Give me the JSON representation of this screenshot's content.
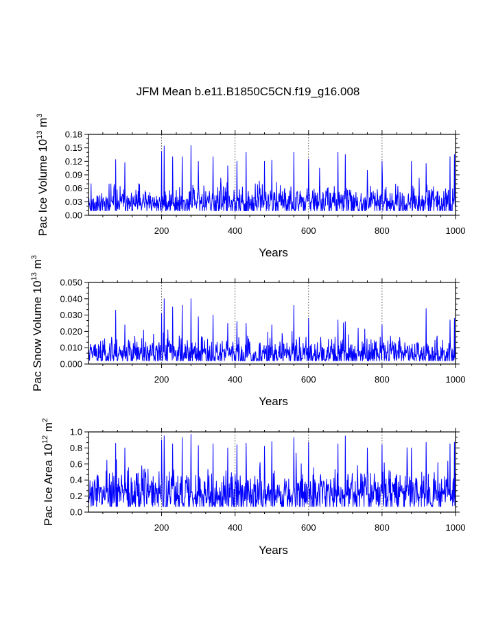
{
  "title": "JFM Mean b.e11.B1850C5CN.f19_g16.008",
  "line_color": "#0000ff",
  "chart_data": [
    {
      "type": "line",
      "ylabel_main": "Pac Ice Volume 10",
      "ylabel_exp": "13",
      "ylabel_unit": " m",
      "ylabel_unit_exp": "3",
      "xlabel": "Years",
      "xlim": [
        1,
        1000
      ],
      "ylim": [
        0,
        0.18
      ],
      "xticks": [
        200,
        400,
        600,
        800,
        1000
      ],
      "xtick_labels": [
        "200",
        "400",
        "600",
        "800",
        "1000"
      ],
      "yticks": [
        0,
        0.03,
        0.06,
        0.09,
        0.12,
        0.15,
        0.18
      ],
      "ytick_labels": [
        "0.00",
        "0.03",
        "0.06",
        "0.09",
        "0.12",
        "0.15",
        "0.18"
      ],
      "gridlines_x": [
        200,
        400,
        600,
        800
      ],
      "series": [
        {
          "name": "Pac Ice Volume",
          "mean": 0.046,
          "sd": 0.016,
          "floor": 0.01,
          "peaks": [
            [
              75,
              0.124
            ],
            [
              100,
              0.117
            ],
            [
              200,
              0.142
            ],
            [
              207,
              0.154
            ],
            [
              230,
              0.13
            ],
            [
              256,
              0.13
            ],
            [
              280,
              0.155
            ],
            [
              300,
              0.12
            ],
            [
              340,
              0.13
            ],
            [
              380,
              0.11
            ],
            [
              405,
              0.12
            ],
            [
              430,
              0.14
            ],
            [
              480,
              0.12
            ],
            [
              500,
              0.123
            ],
            [
              560,
              0.14
            ],
            [
              600,
              0.125
            ],
            [
              630,
              0.105
            ],
            [
              680,
              0.14
            ],
            [
              700,
              0.135
            ],
            [
              760,
              0.1
            ],
            [
              800,
              0.12
            ],
            [
              880,
              0.12
            ],
            [
              920,
              0.115
            ],
            [
              985,
              0.13
            ],
            [
              997,
              0.135
            ]
          ],
          "seed": 11
        }
      ]
    },
    {
      "type": "line",
      "ylabel_main": "Pac Snow Volume 10",
      "ylabel_exp": "13",
      "ylabel_unit": " m",
      "ylabel_unit_exp": "3",
      "xlabel": "Years",
      "xlim": [
        1,
        1000
      ],
      "ylim": [
        0,
        0.05
      ],
      "xticks": [
        200,
        400,
        600,
        800,
        1000
      ],
      "xtick_labels": [
        "200",
        "400",
        "600",
        "800",
        "1000"
      ],
      "yticks": [
        0,
        0.01,
        0.02,
        0.03,
        0.04,
        0.05
      ],
      "ytick_labels": [
        "0.000",
        "0.010",
        "0.020",
        "0.030",
        "0.040",
        "0.050"
      ],
      "gridlines_x": [
        200,
        400,
        600,
        800
      ],
      "series": [
        {
          "name": "Pac Snow Volume",
          "mean": 0.0105,
          "sd": 0.0045,
          "floor": 0.002,
          "peaks": [
            [
              75,
              0.033
            ],
            [
              100,
              0.024
            ],
            [
              200,
              0.031
            ],
            [
              207,
              0.04
            ],
            [
              230,
              0.035
            ],
            [
              256,
              0.036
            ],
            [
              280,
              0.04
            ],
            [
              300,
              0.029
            ],
            [
              340,
              0.03
            ],
            [
              380,
              0.025
            ],
            [
              405,
              0.026
            ],
            [
              430,
              0.025
            ],
            [
              500,
              0.024
            ],
            [
              560,
              0.036
            ],
            [
              600,
              0.028
            ],
            [
              680,
              0.027
            ],
            [
              700,
              0.026
            ],
            [
              800,
              0.024
            ],
            [
              920,
              0.034
            ],
            [
              985,
              0.027
            ],
            [
              997,
              0.028
            ]
          ],
          "seed": 23
        }
      ]
    },
    {
      "type": "line",
      "ylabel_main": "Pac Ice Area 10",
      "ylabel_exp": "12",
      "ylabel_unit": " m",
      "ylabel_unit_exp": "2",
      "xlabel": "Years",
      "xlim": [
        1,
        1000
      ],
      "ylim": [
        0,
        1.0
      ],
      "xticks": [
        200,
        400,
        600,
        800,
        1000
      ],
      "xtick_labels": [
        "200",
        "400",
        "600",
        "800",
        "1000"
      ],
      "yticks": [
        0,
        0.2,
        0.4,
        0.6,
        0.8,
        1.0
      ],
      "ytick_labels": [
        "0.0",
        "0.2",
        "0.4",
        "0.6",
        "0.8",
        "1.0"
      ],
      "gridlines_x": [
        200,
        400,
        600,
        800
      ],
      "series": [
        {
          "name": "Pac Ice Area",
          "mean": 0.4,
          "sd": 0.13,
          "floor": 0.07,
          "peaks": [
            [
              75,
              0.86
            ],
            [
              100,
              0.8
            ],
            [
              200,
              0.9
            ],
            [
              207,
              0.95
            ],
            [
              230,
              0.85
            ],
            [
              256,
              0.93
            ],
            [
              280,
              0.97
            ],
            [
              300,
              0.83
            ],
            [
              340,
              0.85
            ],
            [
              380,
              0.8
            ],
            [
              405,
              0.84
            ],
            [
              430,
              0.86
            ],
            [
              480,
              0.82
            ],
            [
              500,
              0.88
            ],
            [
              560,
              0.93
            ],
            [
              600,
              0.87
            ],
            [
              680,
              0.85
            ],
            [
              700,
              0.95
            ],
            [
              760,
              0.8
            ],
            [
              800,
              0.84
            ],
            [
              880,
              0.8
            ],
            [
              920,
              0.87
            ],
            [
              985,
              0.85
            ],
            [
              997,
              0.87
            ]
          ],
          "seed": 37
        }
      ]
    }
  ]
}
